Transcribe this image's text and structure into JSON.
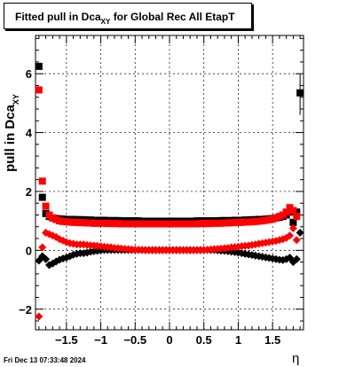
{
  "title": {
    "main": "Fitted pull in Dca",
    "subscript": "XY",
    "rest": "for Global Rec All EtapT"
  },
  "datestamp": "Fri Dec 13 07:33:48 2024",
  "chart_data": {
    "type": "scatter",
    "title": "Fitted pull in Dca_XY for Global Rec All EtapT",
    "xlabel": "η",
    "ylabel": "pull in Dca_XY",
    "xlim": [
      -1.95,
      1.95
    ],
    "ylim": [
      -2.7,
      7.3
    ],
    "x_ticks": [
      -1.5,
      -1,
      -0.5,
      0,
      0.5,
      1,
      1.5
    ],
    "x_tick_labels": [
      "−1.5",
      "−1",
      "−0.5",
      "0",
      "0.5",
      "1",
      "1.5"
    ],
    "y_ticks": [
      -2,
      0,
      2,
      4,
      6
    ],
    "y_tick_labels": [
      "−2",
      "0",
      "2",
      "4",
      "6"
    ],
    "grid": true,
    "series": [
      {
        "marker": "square",
        "color": "#000000",
        "x": [
          -1.9,
          -1.85,
          -1.8,
          -1.75,
          -1.7,
          -1.65,
          -1.6,
          -1.55,
          -1.5,
          -1.45,
          -1.4,
          -1.35,
          -1.3,
          -1.25,
          -1.2,
          -1.15,
          -1.1,
          -1.05,
          -1.0,
          -0.95,
          -0.9,
          -0.85,
          -0.8,
          -0.75,
          -0.7,
          -0.65,
          -0.6,
          -0.55,
          -0.5,
          -0.45,
          -0.4,
          -0.35,
          -0.3,
          -0.25,
          -0.2,
          -0.15,
          -0.1,
          -0.05,
          0.0,
          0.05,
          0.1,
          0.15,
          0.2,
          0.25,
          0.3,
          0.35,
          0.4,
          0.45,
          0.5,
          0.55,
          0.6,
          0.65,
          0.7,
          0.75,
          0.8,
          0.85,
          0.9,
          0.95,
          1.0,
          1.05,
          1.1,
          1.15,
          1.2,
          1.25,
          1.3,
          1.35,
          1.4,
          1.45,
          1.5,
          1.55,
          1.6,
          1.65,
          1.7,
          1.75,
          1.8,
          1.85,
          1.9
        ],
        "y": [
          6.25,
          1.8,
          1.25,
          1.15,
          1.1,
          1.08,
          1.07,
          1.06,
          1.05,
          1.05,
          1.05,
          1.04,
          1.04,
          1.04,
          1.03,
          1.03,
          1.02,
          1.02,
          1.02,
          1.02,
          1.01,
          1.01,
          1.01,
          1.01,
          1.0,
          1.0,
          1.0,
          1.0,
          1.0,
          1.0,
          0.99,
          0.99,
          0.99,
          0.99,
          0.99,
          0.99,
          0.99,
          0.99,
          0.99,
          0.99,
          0.99,
          0.99,
          0.99,
          0.99,
          0.99,
          0.99,
          1.0,
          1.0,
          1.0,
          1.0,
          1.0,
          1.0,
          1.0,
          1.01,
          1.01,
          1.01,
          1.01,
          1.02,
          1.02,
          1.02,
          1.03,
          1.03,
          1.04,
          1.04,
          1.05,
          1.05,
          1.06,
          1.07,
          1.08,
          1.1,
          1.12,
          1.15,
          1.2,
          1.3,
          0.95,
          1.3,
          5.35
        ]
      },
      {
        "marker": "square",
        "color": "#ff0000",
        "x": [
          -1.9,
          -1.85,
          -1.8,
          -1.75,
          -1.7,
          -1.65,
          -1.6,
          -1.55,
          -1.5,
          -1.45,
          -1.4,
          -1.35,
          -1.3,
          -1.25,
          -1.2,
          -1.15,
          -1.1,
          -1.05,
          -1.0,
          -0.95,
          -0.9,
          -0.85,
          -0.8,
          -0.75,
          -0.7,
          -0.65,
          -0.6,
          -0.55,
          -0.5,
          -0.45,
          -0.4,
          -0.35,
          -0.3,
          -0.25,
          -0.2,
          -0.15,
          -0.1,
          -0.05,
          0.0,
          0.05,
          0.1,
          0.15,
          0.2,
          0.25,
          0.3,
          0.35,
          0.4,
          0.45,
          0.5,
          0.55,
          0.6,
          0.65,
          0.7,
          0.75,
          0.8,
          0.85,
          0.9,
          0.95,
          1.0,
          1.05,
          1.1,
          1.15,
          1.2,
          1.25,
          1.3,
          1.35,
          1.4,
          1.45,
          1.5,
          1.55,
          1.6,
          1.65,
          1.7,
          1.75,
          1.8,
          1.85
        ],
        "y": [
          5.45,
          2.35,
          1.5,
          1.2,
          1.1,
          1.05,
          1.0,
          0.98,
          0.97,
          0.96,
          0.95,
          0.95,
          0.94,
          0.94,
          0.93,
          0.93,
          0.92,
          0.92,
          0.92,
          0.92,
          0.91,
          0.91,
          0.91,
          0.91,
          0.9,
          0.9,
          0.9,
          0.9,
          0.9,
          0.9,
          0.9,
          0.9,
          0.9,
          0.9,
          0.9,
          0.9,
          0.9,
          0.9,
          0.9,
          0.9,
          0.9,
          0.9,
          0.9,
          0.9,
          0.9,
          0.9,
          0.9,
          0.91,
          0.91,
          0.91,
          0.91,
          0.92,
          0.92,
          0.92,
          0.93,
          0.93,
          0.94,
          0.94,
          0.95,
          0.95,
          0.96,
          0.96,
          0.97,
          0.98,
          0.99,
          1.0,
          1.02,
          1.04,
          1.06,
          1.1,
          1.15,
          1.2,
          1.3,
          1.45,
          1.35,
          1.15
        ]
      },
      {
        "marker": "diamond",
        "color": "#000000",
        "x": [
          -1.9,
          -1.85,
          -1.8,
          -1.75,
          -1.7,
          -1.65,
          -1.6,
          -1.55,
          -1.5,
          -1.45,
          -1.4,
          -1.35,
          -1.3,
          -1.25,
          -1.2,
          -1.15,
          -1.1,
          -1.05,
          -1.0,
          -0.95,
          -0.9,
          -0.85,
          -0.8,
          -0.75,
          -0.7,
          -0.65,
          -0.6,
          -0.55,
          -0.5,
          -0.45,
          -0.4,
          -0.35,
          -0.3,
          -0.25,
          -0.2,
          -0.15,
          -0.1,
          -0.05,
          0.0,
          0.05,
          0.1,
          0.15,
          0.2,
          0.25,
          0.3,
          0.35,
          0.4,
          0.45,
          0.5,
          0.55,
          0.6,
          0.65,
          0.7,
          0.75,
          0.8,
          0.85,
          0.9,
          0.95,
          1.0,
          1.05,
          1.1,
          1.15,
          1.2,
          1.25,
          1.3,
          1.35,
          1.4,
          1.45,
          1.5,
          1.55,
          1.6,
          1.65,
          1.7,
          1.75,
          1.8,
          1.85,
          1.9
        ],
        "y": [
          -0.35,
          -0.2,
          -0.3,
          -0.5,
          -0.45,
          -0.38,
          -0.32,
          -0.28,
          -0.25,
          -0.2,
          -0.15,
          -0.12,
          -0.1,
          -0.1,
          -0.08,
          -0.05,
          -0.03,
          -0.02,
          0.0,
          0.01,
          0.01,
          0.01,
          0.01,
          0.01,
          0.01,
          0.01,
          0.01,
          0.01,
          0.01,
          0.01,
          0.01,
          0.01,
          0.01,
          0.01,
          0.01,
          0.01,
          0.01,
          0.01,
          0.01,
          0.01,
          0.01,
          0.01,
          0.01,
          0.01,
          0.01,
          0.01,
          0.01,
          0.01,
          0.01,
          0.01,
          0.01,
          0.01,
          0.0,
          -0.01,
          -0.02,
          -0.03,
          -0.05,
          -0.06,
          -0.08,
          -0.1,
          -0.12,
          -0.14,
          -0.16,
          -0.18,
          -0.2,
          -0.22,
          -0.24,
          -0.26,
          -0.28,
          -0.3,
          -0.32,
          -0.33,
          -0.3,
          -0.25,
          -0.4,
          -0.3,
          0.6
        ]
      },
      {
        "marker": "diamond",
        "color": "#ff0000",
        "x": [
          -1.9,
          -1.85,
          -1.8,
          -1.75,
          -1.7,
          -1.65,
          -1.6,
          -1.55,
          -1.5,
          -1.45,
          -1.4,
          -1.35,
          -1.3,
          -1.25,
          -1.2,
          -1.15,
          -1.1,
          -1.05,
          -1.0,
          -0.95,
          -0.9,
          -0.85,
          -0.8,
          -0.75,
          -0.7,
          -0.65,
          -0.6,
          -0.55,
          -0.5,
          -0.45,
          -0.4,
          -0.35,
          -0.3,
          -0.25,
          -0.2,
          -0.15,
          -0.1,
          -0.05,
          0.0,
          0.05,
          0.1,
          0.15,
          0.2,
          0.25,
          0.3,
          0.35,
          0.4,
          0.45,
          0.5,
          0.55,
          0.6,
          0.65,
          0.7,
          0.75,
          0.8,
          0.85,
          0.9,
          0.95,
          1.0,
          1.05,
          1.1,
          1.15,
          1.2,
          1.25,
          1.3,
          1.35,
          1.4,
          1.45,
          1.5,
          1.55,
          1.6,
          1.65,
          1.7,
          1.75,
          1.8,
          1.85
        ],
        "y": [
          -2.25,
          0.1,
          0.6,
          0.55,
          0.5,
          0.45,
          0.38,
          0.33,
          0.28,
          0.24,
          0.22,
          0.2,
          0.2,
          0.2,
          0.18,
          0.17,
          0.16,
          0.15,
          0.14,
          0.12,
          0.11,
          0.1,
          0.08,
          0.07,
          0.06,
          0.05,
          0.04,
          0.03,
          0.02,
          0.02,
          0.01,
          0.0,
          0.0,
          0.0,
          0.0,
          0.0,
          0.0,
          0.0,
          0.0,
          0.0,
          0.0,
          0.0,
          0.0,
          0.0,
          0.0,
          0.0,
          0.0,
          0.0,
          0.01,
          0.02,
          0.03,
          0.04,
          0.05,
          0.06,
          0.07,
          0.08,
          0.1,
          0.11,
          0.12,
          0.14,
          0.15,
          0.16,
          0.18,
          0.2,
          0.22,
          0.24,
          0.26,
          0.28,
          0.3,
          0.32,
          0.35,
          0.38,
          0.42,
          0.5,
          0.75,
          0.35
        ]
      }
    ]
  }
}
